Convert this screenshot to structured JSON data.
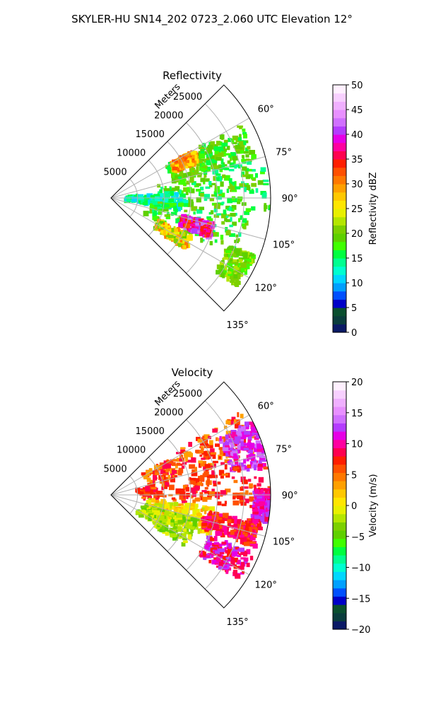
{
  "title": "SKYLER-HU  SN14_202  0723_2.060 UTC Elevation 12°",
  "chart_data": [
    {
      "type": "heatmap",
      "title": "Reflectivity",
      "radial_label": "Meters",
      "radial_ticks": [
        "5000",
        "10000",
        "15000",
        "20000",
        "25000"
      ],
      "radial_tick_values": [
        5000,
        10000,
        15000,
        20000,
        25000
      ],
      "angle_ticks": [
        "60°",
        "75°",
        "90°",
        "105°",
        "120°",
        "135°"
      ],
      "angle_tick_values": [
        60,
        75,
        90,
        105,
        120,
        135
      ],
      "azimuth_range": [
        45,
        135
      ],
      "range_max": 30000,
      "grid": true,
      "colorbar": {
        "label": "Reflectivity dBZ",
        "range": [
          0,
          50
        ],
        "ticks": [
          "0",
          "5",
          "10",
          "15",
          "20",
          "25",
          "30",
          "35",
          "40",
          "45",
          "50"
        ],
        "tick_values": [
          0,
          5,
          10,
          15,
          20,
          25,
          30,
          35,
          40,
          45,
          50
        ],
        "colors": [
          "#0b1a66",
          "#0a3d3d",
          "#0a4f2f",
          "#0000c8",
          "#0050ff",
          "#00a0ff",
          "#00d7ff",
          "#00ffd0",
          "#00ff90",
          "#00ff40",
          "#40ff00",
          "#5ed000",
          "#7cd000",
          "#b4e600",
          "#e8f000",
          "#ffe600",
          "#ffc800",
          "#ffa000",
          "#ff7800",
          "#ff5000",
          "#ff1e00",
          "#ff0050",
          "#ff00a0",
          "#e600e6",
          "#b43cff",
          "#d070ff",
          "#e890ff",
          "#f0b0ff",
          "#f8d0ff",
          "#fff0ff"
        ]
      }
    },
    {
      "type": "heatmap",
      "title": "Velocity",
      "radial_label": "Meters",
      "radial_ticks": [
        "5000",
        "10000",
        "15000",
        "20000",
        "25000"
      ],
      "radial_tick_values": [
        5000,
        10000,
        15000,
        20000,
        25000
      ],
      "angle_ticks": [
        "60°",
        "75°",
        "90°",
        "105°",
        "120°",
        "135°"
      ],
      "angle_tick_values": [
        60,
        75,
        90,
        105,
        120,
        135
      ],
      "azimuth_range": [
        45,
        135
      ],
      "range_max": 30000,
      "grid": true,
      "colorbar": {
        "label": "Velocity (m/s)",
        "range": [
          -20,
          20
        ],
        "ticks": [
          "−20",
          "−15",
          "−10",
          "−5",
          "0",
          "5",
          "10",
          "15",
          "20"
        ],
        "tick_values": [
          -20,
          -15,
          -10,
          -5,
          0,
          5,
          10,
          15,
          20
        ],
        "colors": [
          "#0b1a66",
          "#0a3d3d",
          "#0a4f2f",
          "#0000c8",
          "#0050ff",
          "#00a0ff",
          "#00d7ff",
          "#00ffd0",
          "#00ff90",
          "#00ff40",
          "#40ff00",
          "#5ed000",
          "#7cd000",
          "#b4e600",
          "#e8f000",
          "#ffe600",
          "#ffc800",
          "#ffa000",
          "#ff7800",
          "#ff5000",
          "#ff1e00",
          "#ff0050",
          "#ff00a0",
          "#e600e6",
          "#b43cff",
          "#d070ff",
          "#e890ff",
          "#f0b0ff",
          "#f8d0ff",
          "#fff0ff"
        ]
      }
    }
  ]
}
